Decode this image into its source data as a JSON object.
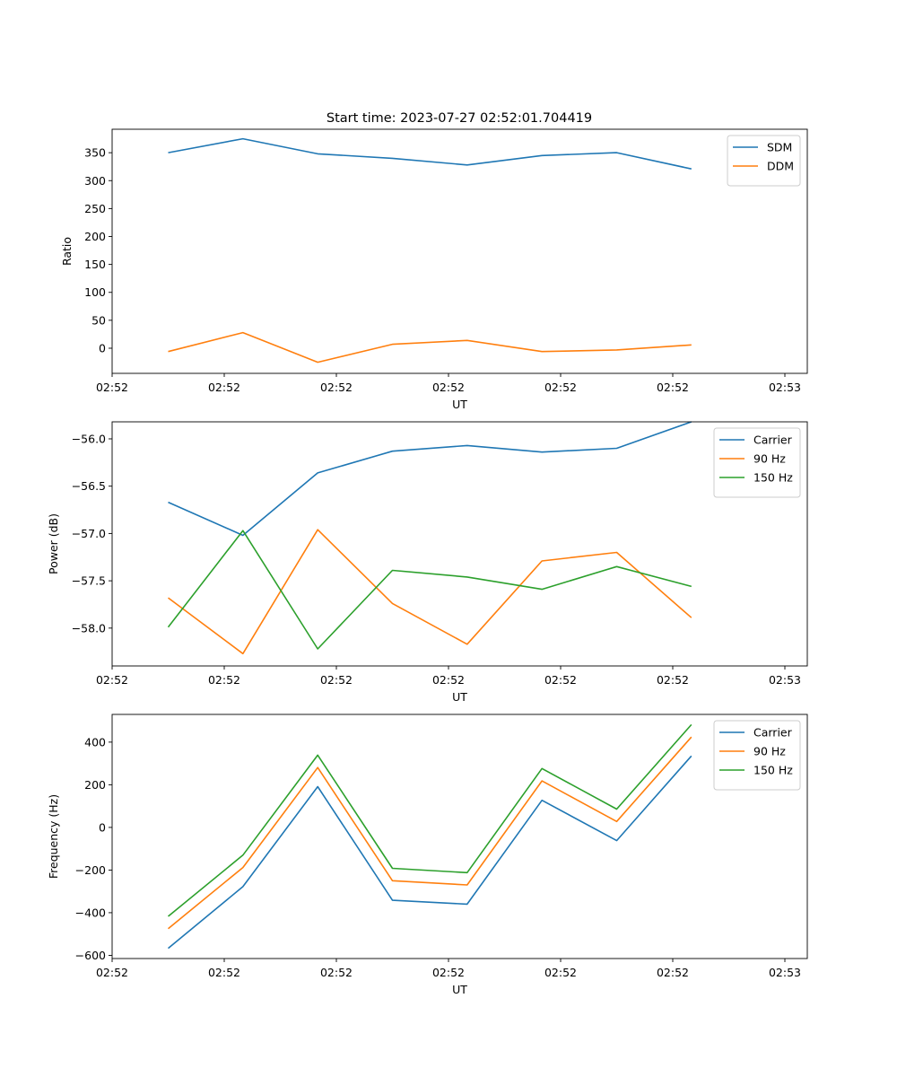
{
  "title": "Start time: 2023-07-27 02:52:01.704419",
  "colors": {
    "blue": "#1f77b4",
    "orange": "#ff7f0e",
    "green": "#2ca02c",
    "axis": "#000000"
  },
  "chart_data": [
    {
      "type": "line",
      "title": "Start time: 2023-07-27 02:52:01.704419",
      "xlabel": "UT",
      "ylabel": "Ratio",
      "grid": false,
      "legend": "upper-right",
      "xlim": [
        0,
        9.3
      ],
      "ylim": [
        -45,
        392
      ],
      "x": [
        0.75,
        1.75,
        2.75,
        3.75,
        4.75,
        5.75,
        6.75,
        7.75
      ],
      "xticks": [
        {
          "value": 0,
          "label": "02:52"
        },
        {
          "value": 1.5,
          "label": "02:52"
        },
        {
          "value": 3,
          "label": "02:52"
        },
        {
          "value": 4.5,
          "label": "02:52"
        },
        {
          "value": 6,
          "label": "02:52"
        },
        {
          "value": 7.5,
          "label": "02:52"
        },
        {
          "value": 9,
          "label": "02:53"
        }
      ],
      "yticks": [
        {
          "value": 0,
          "label": "0"
        },
        {
          "value": 50,
          "label": "50"
        },
        {
          "value": 100,
          "label": "100"
        },
        {
          "value": 150,
          "label": "150"
        },
        {
          "value": 200,
          "label": "200"
        },
        {
          "value": 250,
          "label": "250"
        },
        {
          "value": 300,
          "label": "300"
        },
        {
          "value": 350,
          "label": "350"
        }
      ],
      "series": [
        {
          "name": "SDM",
          "color": "#1f77b4",
          "values": [
            350,
            375,
            348,
            340,
            328,
            345,
            350,
            321
          ]
        },
        {
          "name": "DDM",
          "color": "#ff7f0e",
          "values": [
            -6,
            28,
            -25,
            7,
            14,
            -6,
            -3,
            6
          ]
        }
      ]
    },
    {
      "type": "line",
      "title": "",
      "xlabel": "UT",
      "ylabel": "Power (dB)",
      "grid": false,
      "legend": "upper-right",
      "xlim": [
        0,
        9.3
      ],
      "ylim": [
        -58.4,
        -55.82
      ],
      "x": [
        0.75,
        1.75,
        2.75,
        3.75,
        4.75,
        5.75,
        6.75,
        7.75
      ],
      "xticks": [
        {
          "value": 0,
          "label": "02:52"
        },
        {
          "value": 1.5,
          "label": "02:52"
        },
        {
          "value": 3,
          "label": "02:52"
        },
        {
          "value": 4.5,
          "label": "02:52"
        },
        {
          "value": 6,
          "label": "02:52"
        },
        {
          "value": 7.5,
          "label": "02:52"
        },
        {
          "value": 9,
          "label": "02:53"
        }
      ],
      "yticks": [
        {
          "value": -58.0,
          "label": "−58.0"
        },
        {
          "value": -57.5,
          "label": "−57.5"
        },
        {
          "value": -57.0,
          "label": "−57.0"
        },
        {
          "value": -56.5,
          "label": "−56.5"
        },
        {
          "value": -56.0,
          "label": "−56.0"
        }
      ],
      "series": [
        {
          "name": "Carrier",
          "color": "#1f77b4",
          "values": [
            -56.67,
            -57.02,
            -56.36,
            -56.13,
            -56.07,
            -56.14,
            -56.1,
            -55.82
          ]
        },
        {
          "name": "90 Hz",
          "color": "#ff7f0e",
          "values": [
            -57.68,
            -58.27,
            -56.96,
            -57.74,
            -58.17,
            -57.29,
            -57.2,
            -57.89
          ]
        },
        {
          "name": "150 Hz",
          "color": "#2ca02c",
          "values": [
            -57.99,
            -56.97,
            -58.22,
            -57.39,
            -57.46,
            -57.59,
            -57.35,
            -57.56
          ]
        }
      ]
    },
    {
      "type": "line",
      "title": "",
      "xlabel": "UT",
      "ylabel": "Frequency (Hz)",
      "grid": false,
      "legend": "upper-right",
      "xlim": [
        0,
        9.3
      ],
      "ylim": [
        -615,
        530
      ],
      "x": [
        0.75,
        1.75,
        2.75,
        3.75,
        4.75,
        5.75,
        6.75,
        7.75
      ],
      "xticks": [
        {
          "value": 0,
          "label": "02:52"
        },
        {
          "value": 1.5,
          "label": "02:52"
        },
        {
          "value": 3,
          "label": "02:52"
        },
        {
          "value": 4.5,
          "label": "02:52"
        },
        {
          "value": 6,
          "label": "02:52"
        },
        {
          "value": 7.5,
          "label": "02:52"
        },
        {
          "value": 9,
          "label": "02:53"
        }
      ],
      "yticks": [
        {
          "value": -600,
          "label": "−600"
        },
        {
          "value": -400,
          "label": "−400"
        },
        {
          "value": -200,
          "label": "−200"
        },
        {
          "value": 0,
          "label": "0"
        },
        {
          "value": 200,
          "label": "200"
        },
        {
          "value": 400,
          "label": "400"
        }
      ],
      "series": [
        {
          "name": "Carrier",
          "color": "#1f77b4",
          "values": [
            -567,
            -278,
            191,
            -342,
            -360,
            127,
            -62,
            335
          ]
        },
        {
          "name": "90 Hz",
          "color": "#ff7f0e",
          "values": [
            -475,
            -188,
            281,
            -250,
            -270,
            218,
            28,
            424
          ]
        },
        {
          "name": "150 Hz",
          "color": "#2ca02c",
          "values": [
            -417,
            -130,
            339,
            -192,
            -212,
            276,
            86,
            482
          ]
        }
      ]
    }
  ]
}
